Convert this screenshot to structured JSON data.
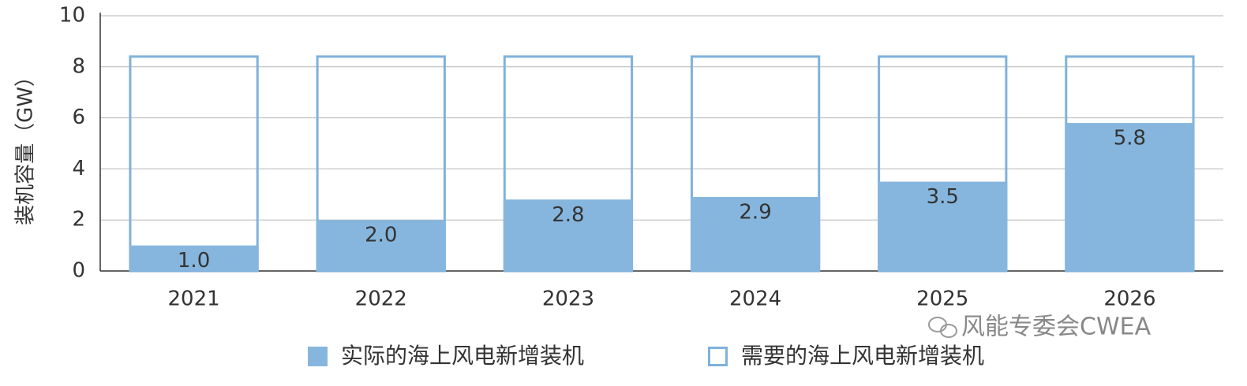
{
  "chart_data": {
    "type": "bar",
    "y_axis_label": "装机容量（GW）",
    "categories": [
      "2021",
      "2022",
      "2023",
      "2024",
      "2025",
      "2026"
    ],
    "series": [
      {
        "name": "实际的海上风电新增装机",
        "color": "#86b6dd",
        "values": [
          1.0,
          2.0,
          2.8,
          2.9,
          3.5,
          5.8
        ],
        "value_labels": [
          "1.0",
          "2.0",
          "2.8",
          "2.9",
          "3.5",
          "5.8"
        ]
      },
      {
        "name": "需要的海上风电新增装机",
        "color": "#7fb2dc",
        "values": [
          8.4,
          8.4,
          8.4,
          8.4,
          8.4,
          8.4
        ]
      }
    ],
    "ylim": [
      0,
      10
    ],
    "yticks": [
      0,
      2,
      4,
      6,
      8,
      10
    ],
    "grid": true,
    "watermark": "风能专委会CWEA"
  }
}
